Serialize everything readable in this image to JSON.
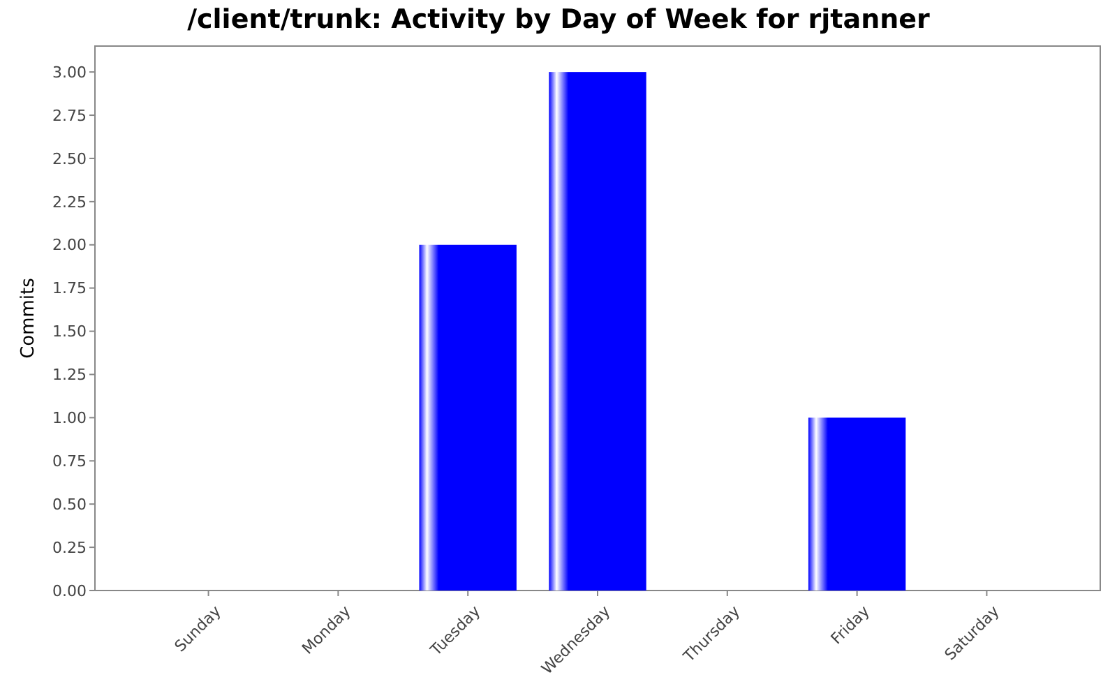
{
  "chart_data": {
    "type": "bar",
    "title": "/client/trunk: Activity by Day of Week for rjtanner",
    "ylabel": "Commits",
    "categories": [
      "Sunday",
      "Monday",
      "Tuesday",
      "Wednesday",
      "Thursday",
      "Friday",
      "Saturday"
    ],
    "values": [
      0,
      0,
      2,
      3,
      0,
      1,
      0
    ],
    "color": "#0000ff",
    "ylim": [
      0,
      3.15
    ],
    "yticks": [
      {
        "value": 0,
        "label": "0.00"
      },
      {
        "value": 0.25,
        "label": "0.25"
      },
      {
        "value": 0.5,
        "label": "0.50"
      },
      {
        "value": 0.75,
        "label": "0.75"
      },
      {
        "value": 1,
        "label": "1.00"
      },
      {
        "value": 1.25,
        "label": "1.25"
      },
      {
        "value": 1.5,
        "label": "1.50"
      },
      {
        "value": 1.75,
        "label": "1.75"
      },
      {
        "value": 2,
        "label": "2.00"
      },
      {
        "value": 2.25,
        "label": "2.25"
      },
      {
        "value": 2.5,
        "label": "2.50"
      },
      {
        "value": 2.75,
        "label": "2.75"
      },
      {
        "value": 3,
        "label": "3.00"
      }
    ]
  }
}
